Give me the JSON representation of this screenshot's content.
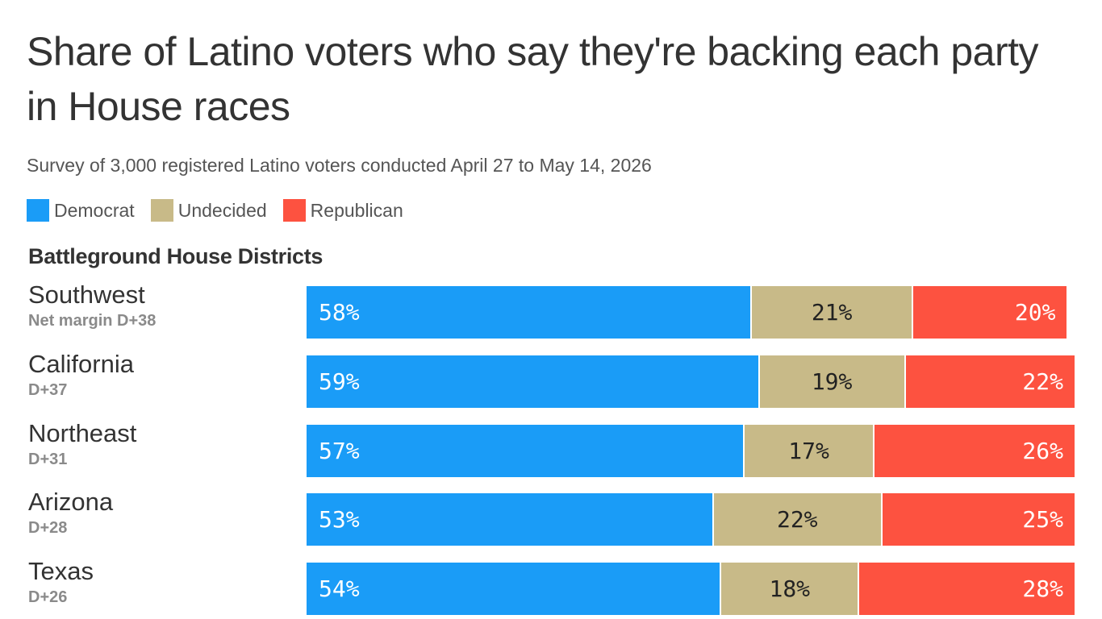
{
  "title": "Share of Latino voters who say they're backing each party in House races",
  "subtitle": "Survey of 3,000 registered Latino voters conducted April 27 to May 14, 2026",
  "colors": {
    "democrat": "#1a9cf7",
    "undecided": "#c8ba88",
    "republican": "#fd5240",
    "text": "#333333"
  },
  "legend": [
    {
      "label": "Democrat",
      "color": "#1a9cf7"
    },
    {
      "label": "Undecided",
      "color": "#c8ba88"
    },
    {
      "label": "Republican",
      "color": "#fd5240"
    }
  ],
  "section_heading": "Battleground House Districts",
  "chart_data": {
    "type": "bar",
    "orientation": "horizontal",
    "stacked": true,
    "title": "Share of Latino voters who say they're backing each party in House races",
    "subtitle": "Survey of 3,000 registered Latino voters conducted April 27 to May 14, 2026",
    "categories": [
      "Southwest",
      "California",
      "Northeast",
      "Arizona",
      "Texas"
    ],
    "category_notes": [
      "Net margin D+38",
      "D+37",
      "D+31",
      "D+28",
      "D+26"
    ],
    "series": [
      {
        "name": "Democrat",
        "color": "#1a9cf7",
        "values": [
          58,
          59,
          57,
          53,
          54
        ]
      },
      {
        "name": "Undecided",
        "color": "#c8ba88",
        "values": [
          21,
          19,
          17,
          22,
          18
        ]
      },
      {
        "name": "Republican",
        "color": "#fd5240",
        "values": [
          20,
          22,
          26,
          25,
          28
        ]
      }
    ],
    "data_labels": [
      [
        "58%",
        "21%",
        "20%"
      ],
      [
        "59%",
        "19%",
        "22%"
      ],
      [
        "57%",
        "17%",
        "26%"
      ],
      [
        "53%",
        "22%",
        "25%"
      ],
      [
        "54%",
        "18%",
        "28%"
      ]
    ],
    "xlim": [
      0,
      100
    ],
    "legend_position": "top-left",
    "grid": false
  }
}
